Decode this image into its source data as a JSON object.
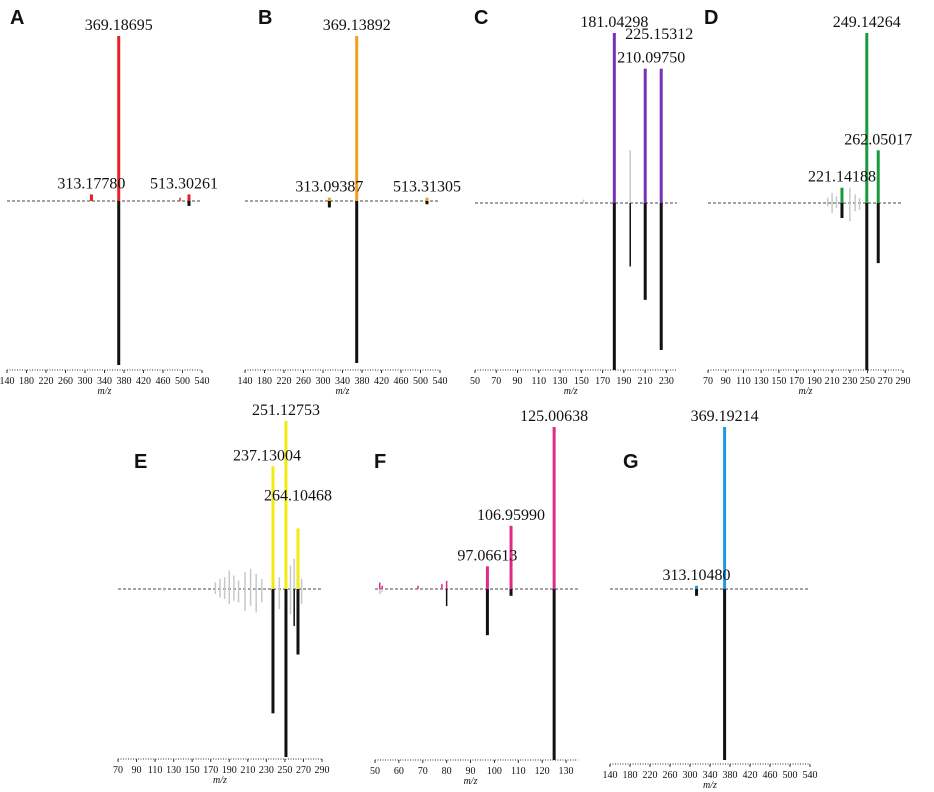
{
  "colors": {
    "A": "#e8202a",
    "B": "#f0a020",
    "C": "#7a2fb8",
    "D": "#1a9a3a",
    "E": "#f2ea10",
    "F": "#e02a8a",
    "G": "#1a9ae0",
    "reference": "#111111",
    "noise": "#c8c8c8",
    "baseline": "#444444"
  },
  "chart_data": [
    {
      "panel": "A",
      "type": "bar",
      "xlabel": "m/z",
      "xlim": [
        140,
        540
      ],
      "ticks": [
        140,
        180,
        220,
        260,
        300,
        340,
        380,
        420,
        460,
        500,
        540
      ],
      "peaks": [
        {
          "mz": 369.18695,
          "top": 100,
          "bottom": 100
        },
        {
          "mz": 313.1778,
          "top": 4,
          "bottom": 0
        },
        {
          "mz": 513.30261,
          "top": 4,
          "bottom": 3
        },
        {
          "mz": 495,
          "top": 2,
          "bottom": 0
        }
      ],
      "labels": [
        {
          "text": "369.18695",
          "mz": 369.18695,
          "level": 100
        },
        {
          "text": "313.17780",
          "mz": 313.1778,
          "level": 4
        },
        {
          "text": "513.30261",
          "mz": 513.30261,
          "level": 4
        }
      ]
    },
    {
      "panel": "B",
      "type": "bar",
      "xlabel": "m/z",
      "xlim": [
        140,
        540
      ],
      "ticks": [
        140,
        180,
        220,
        260,
        300,
        340,
        380,
        420,
        460,
        500,
        540
      ],
      "peaks": [
        {
          "mz": 369.13892,
          "top": 100,
          "bottom": 100
        },
        {
          "mz": 313.09387,
          "top": 2,
          "bottom": 4
        },
        {
          "mz": 513.31305,
          "top": 2,
          "bottom": 2
        }
      ],
      "labels": [
        {
          "text": "369.13892",
          "mz": 369.13892,
          "level": 100
        },
        {
          "text": "313.09387",
          "mz": 313.09387,
          "level": 2
        },
        {
          "text": "513.31305",
          "mz": 513.31305,
          "level": 2
        }
      ]
    },
    {
      "panel": "C",
      "type": "bar",
      "xlabel": "m/z",
      "xlim": [
        50,
        240
      ],
      "ticks": [
        50,
        70,
        90,
        110,
        130,
        150,
        170,
        190,
        210,
        230
      ],
      "peaks": [
        {
          "mz": 181.04298,
          "top": 100,
          "bottom": 100
        },
        {
          "mz": 210.0975,
          "top": 79,
          "bottom": 58
        },
        {
          "mz": 225.15312,
          "top": 79,
          "bottom": 88
        },
        {
          "mz": 196,
          "top": 0,
          "bottom": 38
        },
        {
          "mz": 196,
          "top": 31,
          "bottom": 0
        },
        {
          "mz": 152,
          "top": 2,
          "bottom": 0
        },
        {
          "mz": 160,
          "top": 1,
          "bottom": 0
        }
      ],
      "labels": [
        {
          "text": "181.04298",
          "mz": 181.04298,
          "level": 100
        },
        {
          "text": "210.09750",
          "mz": 210.0975,
          "level": 79
        },
        {
          "text": "225.15312",
          "mz": 225.15312,
          "level": 93
        }
      ]
    },
    {
      "panel": "D",
      "type": "bar",
      "xlabel": "m/z",
      "xlim": [
        70,
        290
      ],
      "ticks": [
        70,
        90,
        110,
        130,
        150,
        170,
        190,
        210,
        230,
        250,
        270,
        290
      ],
      "peaks": [
        {
          "mz": 249.14264,
          "top": 100,
          "bottom": 100
        },
        {
          "mz": 262.05017,
          "top": 31,
          "bottom": 36
        },
        {
          "mz": 221.14188,
          "top": 9,
          "bottom": 9
        },
        {
          "mz": 205,
          "top": 3,
          "bottom": 2
        },
        {
          "mz": 210,
          "top": 6,
          "bottom": 6
        },
        {
          "mz": 215,
          "top": 4,
          "bottom": 3
        },
        {
          "mz": 230,
          "top": 9,
          "bottom": 11
        },
        {
          "mz": 236,
          "top": 5,
          "bottom": 5
        },
        {
          "mz": 241,
          "top": 3,
          "bottom": 4
        }
      ],
      "labels": [
        {
          "text": "249.14264",
          "mz": 249.14264,
          "level": 100
        },
        {
          "text": "262.05017",
          "mz": 262.05017,
          "level": 31
        },
        {
          "text": "221.14188",
          "mz": 221.14188,
          "level": 9
        }
      ]
    },
    {
      "panel": "E",
      "type": "bar",
      "xlabel": "m/z",
      "xlim": [
        70,
        290
      ],
      "ticks": [
        70,
        90,
        110,
        130,
        150,
        170,
        190,
        210,
        230,
        250,
        270,
        290
      ],
      "peaks": [
        {
          "mz": 251.12753,
          "top": 100,
          "bottom": 100
        },
        {
          "mz": 237.13004,
          "top": 73,
          "bottom": 74
        },
        {
          "mz": 264.10468,
          "top": 36,
          "bottom": 39
        },
        {
          "mz": 120,
          "top": 0,
          "bottom": 1
        },
        {
          "mz": 175,
          "top": 4,
          "bottom": 3
        },
        {
          "mz": 180,
          "top": 6,
          "bottom": 5
        },
        {
          "mz": 185,
          "top": 7,
          "bottom": 6
        },
        {
          "mz": 190,
          "top": 11,
          "bottom": 9
        },
        {
          "mz": 195,
          "top": 8,
          "bottom": 7
        },
        {
          "mz": 200,
          "top": 5,
          "bottom": 8
        },
        {
          "mz": 207,
          "top": 10,
          "bottom": 13
        },
        {
          "mz": 213,
          "top": 12,
          "bottom": 10
        },
        {
          "mz": 219,
          "top": 9,
          "bottom": 14
        },
        {
          "mz": 225,
          "top": 6,
          "bottom": 8
        },
        {
          "mz": 244,
          "top": 7,
          "bottom": 12
        },
        {
          "mz": 256,
          "top": 14,
          "bottom": 15
        },
        {
          "mz": 260,
          "top": 18,
          "bottom": 22
        },
        {
          "mz": 268,
          "top": 6,
          "bottom": 9
        }
      ],
      "labels": [
        {
          "text": "251.12753",
          "mz": 251.12753,
          "level": 100
        },
        {
          "text": "237.13004",
          "mz": 237.13004,
          "level": 73
        },
        {
          "text": "264.10468",
          "mz": 264.10468,
          "level": 49
        }
      ]
    },
    {
      "panel": "F",
      "type": "bar",
      "xlabel": "m/z",
      "xlim": [
        50,
        135
      ],
      "ticks": [
        50,
        60,
        70,
        80,
        90,
        100,
        110,
        120,
        130
      ],
      "peaks": [
        {
          "mz": 125.00638,
          "top": 100,
          "bottom": 100
        },
        {
          "mz": 106.9599,
          "top": 39,
          "bottom": 4
        },
        {
          "mz": 97.06613,
          "top": 14,
          "bottom": 27
        },
        {
          "mz": 80,
          "top": 5,
          "bottom": 10
        },
        {
          "mz": 52,
          "top": 4,
          "bottom": 3
        },
        {
          "mz": 53,
          "top": 2,
          "bottom": 2
        },
        {
          "mz": 68,
          "top": 2,
          "bottom": 0
        },
        {
          "mz": 78,
          "top": 3,
          "bottom": 0
        }
      ],
      "labels": [
        {
          "text": "125.00638",
          "mz": 125.00638,
          "level": 100
        },
        {
          "text": "106.95990",
          "mz": 106.9599,
          "level": 39
        },
        {
          "text": "97.06613",
          "mz": 97.06613,
          "level": 14
        }
      ]
    },
    {
      "panel": "G",
      "type": "bar",
      "xlabel": "m/z",
      "xlim": [
        140,
        540
      ],
      "ticks": [
        140,
        180,
        220,
        260,
        300,
        340,
        380,
        420,
        460,
        500,
        540
      ],
      "peaks": [
        {
          "mz": 369.19214,
          "top": 100,
          "bottom": 100
        },
        {
          "mz": 313.1048,
          "top": 2,
          "bottom": 4
        }
      ],
      "labels": [
        {
          "text": "369.19214",
          "mz": 369.19214,
          "level": 100
        },
        {
          "text": "313.10480",
          "mz": 313.1048,
          "level": 2
        }
      ]
    }
  ]
}
